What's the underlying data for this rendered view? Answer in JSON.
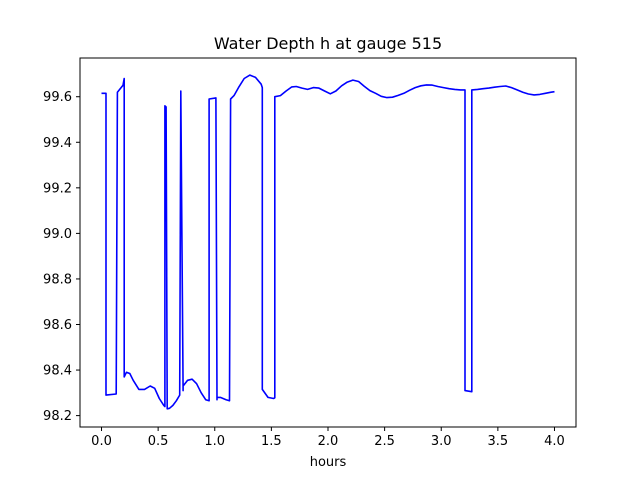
{
  "chart_data": {
    "type": "line",
    "title": "Water Depth h at gauge 515",
    "xlabel": "hours",
    "ylabel": "",
    "xlim": [
      -0.19,
      4.19
    ],
    "ylim": [
      98.15,
      99.77
    ],
    "xticks": [
      0.0,
      0.5,
      1.0,
      1.5,
      2.0,
      2.5,
      3.0,
      3.5,
      4.0
    ],
    "xtick_labels": [
      "0.0",
      "0.5",
      "1.0",
      "1.5",
      "2.0",
      "2.5",
      "3.0",
      "3.5",
      "4.0"
    ],
    "yticks": [
      98.2,
      98.4,
      98.6,
      98.8,
      99.0,
      99.2,
      99.4,
      99.6
    ],
    "ytick_labels": [
      "98.2",
      "98.4",
      "98.6",
      "98.8",
      "99.0",
      "99.2",
      "99.4",
      "99.6"
    ],
    "grid": false,
    "series": [
      {
        "color": "#0000ff",
        "x": [
          0.0,
          0.04,
          0.04,
          0.13,
          0.14,
          0.19,
          0.2,
          0.2,
          0.22,
          0.25,
          0.28,
          0.33,
          0.38,
          0.43,
          0.47,
          0.51,
          0.55,
          0.56,
          0.56,
          0.57,
          0.58,
          0.6,
          0.63,
          0.66,
          0.69,
          0.7,
          0.7,
          0.72,
          0.72,
          0.76,
          0.8,
          0.84,
          0.88,
          0.92,
          0.95,
          0.95,
          1.01,
          1.02,
          1.02,
          1.05,
          1.1,
          1.13,
          1.14,
          1.14,
          1.17,
          1.21,
          1.26,
          1.31,
          1.36,
          1.41,
          1.42,
          1.42,
          1.47,
          1.52,
          1.53,
          1.53,
          1.58,
          1.63,
          1.68,
          1.72,
          1.77,
          1.82,
          1.87,
          1.92,
          1.97,
          2.02,
          2.07,
          2.12,
          2.17,
          2.22,
          2.27,
          2.32,
          2.37,
          2.42,
          2.47,
          2.52,
          2.57,
          2.62,
          2.67,
          2.72,
          2.77,
          2.82,
          2.87,
          2.92,
          2.97,
          3.02,
          3.07,
          3.12,
          3.17,
          3.2,
          3.21,
          3.21,
          3.27,
          3.27,
          3.32,
          3.37,
          3.42,
          3.47,
          3.52,
          3.57,
          3.62,
          3.67,
          3.72,
          3.77,
          3.82,
          3.87,
          3.92,
          3.97,
          4.0
        ],
        "values": [
          99.615,
          99.615,
          98.29,
          98.295,
          99.62,
          99.65,
          99.68,
          98.37,
          98.39,
          98.385,
          98.355,
          98.315,
          98.315,
          98.33,
          98.32,
          98.275,
          98.245,
          98.24,
          99.56,
          99.555,
          98.23,
          98.232,
          98.245,
          98.265,
          98.29,
          99.61,
          99.625,
          98.31,
          98.33,
          98.355,
          98.36,
          98.34,
          98.3,
          98.27,
          98.265,
          99.59,
          99.595,
          98.27,
          98.28,
          98.28,
          98.27,
          98.265,
          99.59,
          99.59,
          99.605,
          99.64,
          99.68,
          99.695,
          99.685,
          99.655,
          99.64,
          98.315,
          98.28,
          98.275,
          98.278,
          99.6,
          99.605,
          99.625,
          99.643,
          99.645,
          99.638,
          99.632,
          99.64,
          99.638,
          99.625,
          99.613,
          99.625,
          99.648,
          99.664,
          99.673,
          99.667,
          99.646,
          99.627,
          99.615,
          99.602,
          99.596,
          99.598,
          99.606,
          99.615,
          99.628,
          99.64,
          99.648,
          99.652,
          99.651,
          99.645,
          99.64,
          99.635,
          99.632,
          99.63,
          99.63,
          99.63,
          98.31,
          98.305,
          99.63,
          99.632,
          99.635,
          99.638,
          99.642,
          99.645,
          99.647,
          99.64,
          99.63,
          99.62,
          99.612,
          99.608,
          99.61,
          99.615,
          99.62,
          99.622
        ]
      }
    ]
  }
}
